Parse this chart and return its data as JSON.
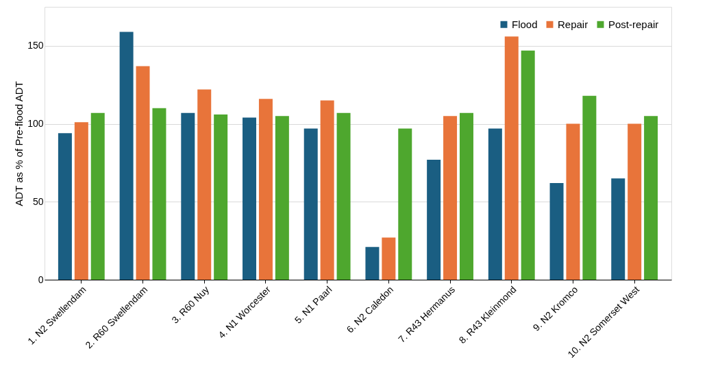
{
  "chart_data": {
    "type": "bar",
    "ylabel": "ADT as % of Pre-flood ADT",
    "categories": [
      "1. N2 Swellendam",
      "2. R60 Swellendam",
      "3. R60 Nuy",
      "4. N1 Worcester",
      "5. N1 Paarl",
      "6. N2 Caledon",
      "7. R43 Hermanus",
      "8. R43 Kleinmond",
      "9. N2 Kromco",
      "10. N2 Somerset West"
    ],
    "series": [
      {
        "name": "Flood",
        "color": "#1a5e82",
        "values": [
          94,
          159,
          107,
          104,
          97,
          21,
          77,
          97,
          62,
          65
        ]
      },
      {
        "name": "Repair",
        "color": "#e8743a",
        "values": [
          101,
          137,
          122,
          116,
          115,
          27,
          105,
          156,
          100,
          100
        ]
      },
      {
        "name": "Post-repair",
        "color": "#4ea72e",
        "values": [
          107,
          110,
          106,
          105,
          107,
          97,
          107,
          147,
          118,
          105
        ]
      }
    ],
    "ylim": [
      0,
      175
    ],
    "yticks": [
      0,
      50,
      100,
      150
    ],
    "grid": "y",
    "legend": "top right"
  }
}
